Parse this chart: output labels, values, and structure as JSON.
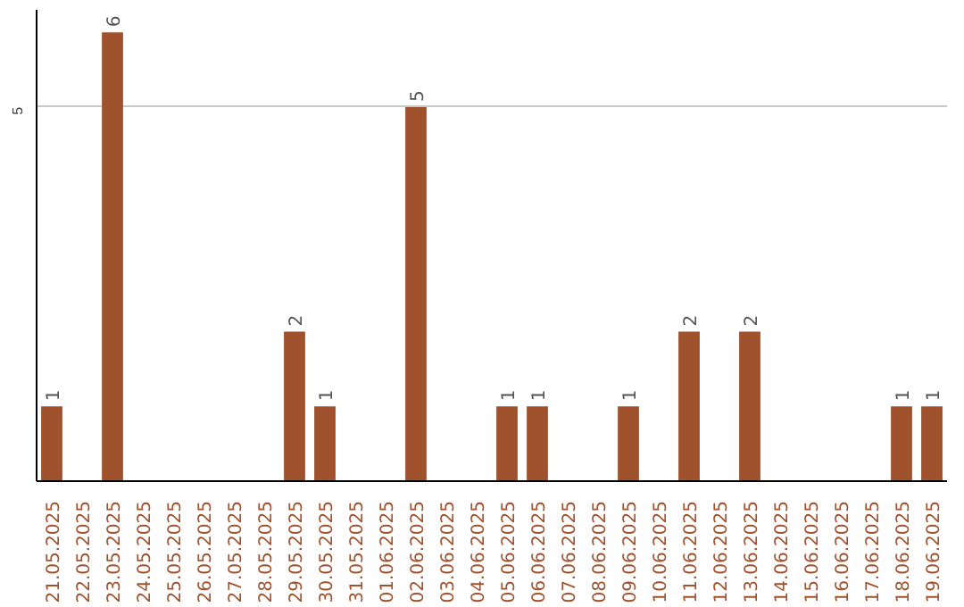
{
  "chart_data": {
    "type": "bar",
    "categories": [
      "21.05.2025",
      "22.05.2025",
      "23.05.2025",
      "24.05.2025",
      "25.05.2025",
      "26.05.2025",
      "27.05.2025",
      "28.05.2025",
      "29.05.2025",
      "30.05.2025",
      "31.05.2025",
      "01.06.2025",
      "02.06.2025",
      "03.06.2025",
      "04.06.2025",
      "05.06.2025",
      "06.06.2025",
      "07.06.2025",
      "08.06.2025",
      "09.06.2025",
      "10.06.2025",
      "11.06.2025",
      "12.06.2025",
      "13.06.2025",
      "14.06.2025",
      "15.06.2025",
      "16.06.2025",
      "17.06.2025",
      "18.06.2025",
      "19.06.2025"
    ],
    "values": [
      1,
      0,
      6,
      0,
      0,
      0,
      0,
      0,
      2,
      1,
      0,
      0,
      5,
      0,
      0,
      1,
      1,
      0,
      0,
      1,
      0,
      2,
      0,
      2,
      0,
      0,
      0,
      0,
      1,
      1
    ],
    "value_labels": [
      "1",
      null,
      "6",
      null,
      null,
      null,
      null,
      null,
      "2",
      "1",
      null,
      null,
      "5",
      null,
      null,
      "1",
      "1",
      null,
      null,
      "1",
      null,
      "2",
      null,
      "2",
      null,
      null,
      null,
      null,
      "1",
      "1"
    ],
    "color": "#a0522d",
    "ylim": [
      0,
      6.3
    ],
    "yticks": [
      5
    ],
    "grid": "y"
  }
}
